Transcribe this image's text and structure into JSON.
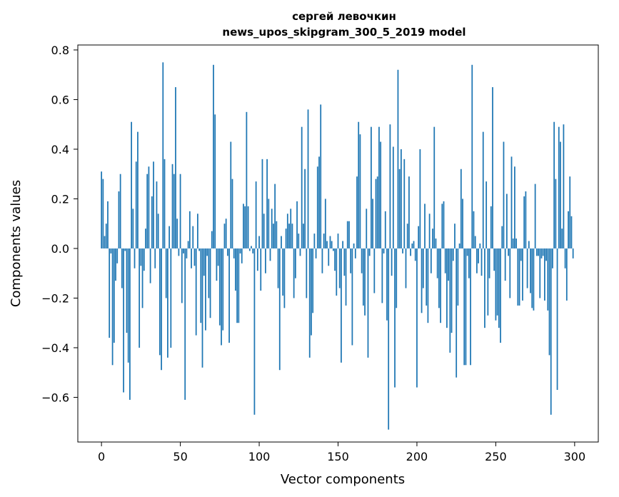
{
  "chart_data": {
    "type": "bar",
    "title": "сергей левочкин",
    "subtitle": "news_upos_skipgram_300_5_2019 model",
    "xlabel": "Vector components",
    "ylabel": "Components values",
    "xlim": [
      -15,
      315
    ],
    "ylim": [
      -0.78,
      0.82
    ],
    "xticks": [
      0,
      50,
      100,
      150,
      200,
      250,
      300
    ],
    "xtick_labels": [
      "0",
      "50",
      "100",
      "150",
      "200",
      "250",
      "300"
    ],
    "yticks": [
      -0.6,
      -0.4,
      -0.2,
      0.0,
      0.2,
      0.4,
      0.6,
      0.8
    ],
    "ytick_labels": [
      "−0.6",
      "−0.4",
      "−0.2",
      "0.0",
      "0.2",
      "0.4",
      "0.6",
      "0.8"
    ],
    "bar_color": "#1f77b4",
    "grid": false,
    "values": [
      0.31,
      0.28,
      0.05,
      0.1,
      0.19,
      -0.36,
      -0.02,
      -0.47,
      -0.38,
      -0.13,
      -0.06,
      0.23,
      0.3,
      -0.16,
      -0.58,
      -0.01,
      -0.34,
      -0.46,
      -0.61,
      0.51,
      0.16,
      -0.08,
      0.35,
      0.47,
      -0.4,
      -0.07,
      -0.24,
      -0.09,
      0.08,
      0.3,
      0.33,
      -0.14,
      0.21,
      0.35,
      -0.08,
      0.27,
      0.14,
      -0.43,
      -0.49,
      0.75,
      0.36,
      -0.2,
      -0.44,
      0.09,
      -0.4,
      0.34,
      0.3,
      0.65,
      0.12,
      -0.03,
      0.3,
      -0.22,
      -0.02,
      -0.61,
      -0.04,
      0.03,
      0.15,
      -0.08,
      0.09,
      -0.07,
      -0.35,
      0.14,
      -0.01,
      -0.3,
      -0.48,
      -0.11,
      -0.33,
      -0.03,
      -0.2,
      -0.28,
      0.07,
      0.74,
      0.54,
      -0.13,
      -0.07,
      -0.31,
      -0.39,
      -0.33,
      0.1,
      0.12,
      -0.03,
      -0.38,
      0.43,
      0.28,
      -0.04,
      -0.17,
      -0.3,
      -0.3,
      -0.02,
      -0.06,
      0.18,
      0.17,
      0.55,
      0.17,
      -0.01,
      0.01,
      -0.02,
      -0.67,
      0.27,
      -0.09,
      0.05,
      -0.17,
      0.36,
      0.14,
      -0.1,
      0.36,
      0.2,
      -0.05,
      0.16,
      0.1,
      0.26,
      0.11,
      -0.16,
      -0.49,
      0.05,
      -0.19,
      -0.24,
      0.08,
      0.14,
      0.1,
      0.16,
      0.1,
      -0.2,
      -0.12,
      0.19,
      0.06,
      -0.03,
      0.49,
      0.1,
      0.32,
      -0.2,
      0.56,
      -0.44,
      -0.35,
      -0.26,
      0.06,
      -0.04,
      0.33,
      0.37,
      0.58,
      -0.1,
      0.06,
      0.2,
      0.03,
      -0.07,
      0.05,
      0.03,
      -0.01,
      -0.09,
      -0.19,
      0.06,
      -0.16,
      -0.46,
      0.03,
      -0.11,
      -0.23,
      0.11,
      0.11,
      -0.1,
      -0.39,
      0.02,
      -0.04,
      0.29,
      0.51,
      0.46,
      -0.1,
      -0.23,
      -0.27,
      0.16,
      -0.44,
      -0.03,
      0.49,
      0.2,
      -0.18,
      0.28,
      0.29,
      0.49,
      0.43,
      -0.22,
      -0.02,
      0.15,
      -0.29,
      -0.73,
      0.5,
      -0.11,
      0.41,
      -0.56,
      -0.24,
      0.72,
      0.32,
      0.4,
      -0.02,
      0.36,
      -0.16,
      0.1,
      0.29,
      -0.03,
      0.02,
      0.03,
      -0.05,
      -0.56,
      0.09,
      0.4,
      -0.26,
      -0.16,
      0.18,
      -0.23,
      -0.3,
      0.14,
      -0.1,
      0.08,
      0.49,
      0.04,
      -0.12,
      -0.24,
      -0.3,
      0.18,
      0.19,
      -0.1,
      -0.32,
      -0.13,
      -0.42,
      -0.34,
      -0.05,
      0.1,
      -0.52,
      -0.23,
      0.02,
      0.32,
      0.2,
      -0.47,
      -0.47,
      -0.03,
      -0.12,
      -0.47,
      0.74,
      0.15,
      0.05,
      -0.1,
      -0.06,
      0.02,
      -0.11,
      0.47,
      -0.32,
      0.27,
      -0.27,
      -0.12,
      0.17,
      0.65,
      -0.09,
      -0.29,
      -0.27,
      -0.32,
      -0.38,
      0.09,
      0.43,
      -0.13,
      0.22,
      -0.03,
      -0.2,
      0.37,
      0.04,
      0.33,
      0.04,
      -0.23,
      -0.23,
      -0.05,
      -0.21,
      0.21,
      0.23,
      -0.16,
      0.03,
      -0.18,
      -0.24,
      -0.25,
      0.26,
      -0.03,
      -0.03,
      -0.2,
      -0.04,
      -0.03,
      -0.21,
      -0.05,
      -0.25,
      -0.43,
      -0.67,
      -0.08,
      0.51,
      0.28,
      -0.57,
      0.49,
      0.43,
      0.08,
      0.5,
      -0.08,
      -0.21,
      0.15,
      0.29,
      0.13,
      -0.04
    ]
  }
}
